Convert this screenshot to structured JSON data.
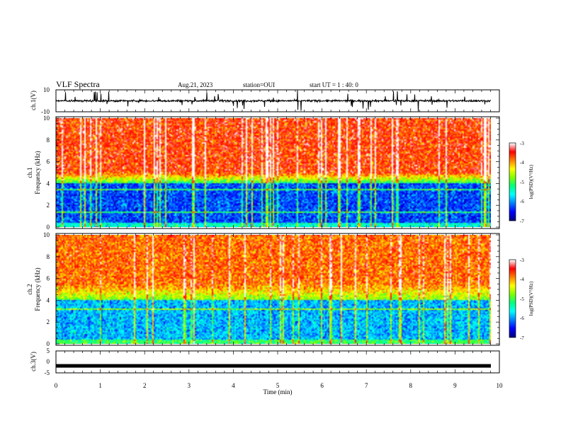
{
  "header": {
    "title": "VLF Spectra",
    "date": "Aug.21, 2023",
    "station": "station=OUI",
    "start_ut": "start UT = 1 : 40: 0"
  },
  "chart_data": [
    {
      "panel": "ch1-waveform",
      "type": "line",
      "ylabel": "ch.1(V)",
      "ylim": [
        -10,
        10
      ],
      "yticks": [
        "10",
        "-10"
      ],
      "baseline": 0,
      "xlim": [
        0,
        10
      ]
    },
    {
      "panel": "ch1-spectrogram",
      "type": "heatmap",
      "ylabel": "ch.1 Frequency (kHz)",
      "ylabel_lines": [
        "ch.1",
        "Frequency (kHz)"
      ],
      "ylim": [
        0,
        10
      ],
      "yticks": [
        "0",
        "2",
        "4",
        "6",
        "8",
        "10"
      ],
      "xlim": [
        0,
        9.85
      ],
      "colorbar": {
        "label": "log(PSD)(V²/Hz)",
        "range": [
          -7,
          -3
        ],
        "ticks": [
          "-3",
          "-4",
          "-5",
          "-6",
          "-7"
        ]
      },
      "features": {
        "high_band_kHz": [
          5,
          10
        ],
        "high_band_log_psd": -3.6,
        "low_band_kHz": [
          0.3,
          4
        ],
        "low_band_log_psd": -6.3,
        "transition_kHz": 5
      }
    },
    {
      "panel": "ch2-spectrogram",
      "type": "heatmap",
      "ylabel": "ch.2 Frequency (kHz)",
      "ylabel_lines": [
        "ch.2",
        "Frequency (kHz)"
      ],
      "ylim": [
        0,
        10
      ],
      "yticks": [
        "0",
        "2",
        "4",
        "6",
        "8",
        "10"
      ],
      "xlim": [
        0,
        9.85
      ],
      "colorbar": {
        "label": "log(PSD)(V²/Hz)",
        "range": [
          -7,
          -3
        ],
        "ticks": [
          "-3",
          "-4",
          "-5",
          "-6",
          "-7"
        ]
      },
      "features": {
        "high_band_kHz": [
          6,
          10
        ],
        "high_band_log_psd": -3.8,
        "low_band_kHz": [
          0.3,
          4
        ],
        "low_band_log_psd": -5.9,
        "transition_kHz": 5.5
      }
    },
    {
      "panel": "ch3-waveform",
      "type": "line",
      "ylabel": "ch.3(V)",
      "ylim": [
        -5,
        5
      ],
      "yticks": [
        "5",
        "0",
        "-5"
      ],
      "baseline": -1.8,
      "xlim": [
        0,
        10
      ]
    }
  ],
  "xaxis": {
    "label": "Time (min)",
    "range": [
      0,
      10
    ],
    "ticks": [
      "0",
      "1",
      "2",
      "3",
      "4",
      "5",
      "6",
      "7",
      "8",
      "9",
      "10"
    ]
  },
  "colors": {
    "colormap": [
      "#000080",
      "#0000ff",
      "#0080ff",
      "#00ffff",
      "#00ff80",
      "#80ff00",
      "#ffff00",
      "#ff8000",
      "#ff0000",
      "#ffffff"
    ],
    "trace": "#000000"
  }
}
